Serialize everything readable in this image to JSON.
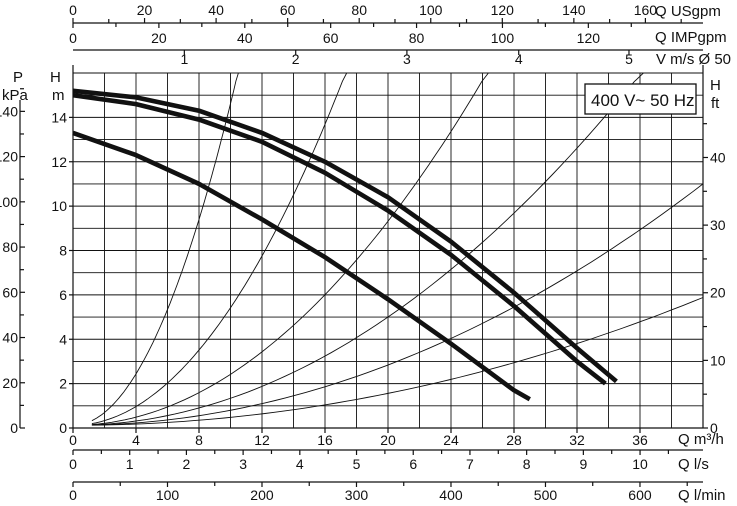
{
  "chart_data": {
    "type": "line",
    "annotation": "400 V~ 50 Hz",
    "x_m3h": {
      "label": "Q m³/h",
      "range": [
        0,
        40
      ],
      "ticks": [
        "0",
        "4",
        "8",
        "12",
        "16",
        "20",
        "24",
        "28",
        "32",
        "36"
      ]
    },
    "x_ls": {
      "label": "Q l/s",
      "range": [
        0,
        11.11
      ],
      "ticks": [
        "0",
        "1",
        "2",
        "3",
        "4",
        "5",
        "6",
        "7",
        "8",
        "9",
        "10"
      ]
    },
    "x_lmin": {
      "label": "Q l/min",
      "range": [
        0,
        666.7
      ],
      "ticks": [
        "0",
        "100",
        "200",
        "300",
        "400",
        "500",
        "600"
      ]
    },
    "x_usgpm": {
      "label": "Q USgpm",
      "range": [
        0,
        176.1
      ],
      "ticks": [
        "0",
        "20",
        "40",
        "60",
        "80",
        "100",
        "120",
        "140",
        "160"
      ]
    },
    "x_impgpm": {
      "label": "Q IMPgpm",
      "range": [
        0,
        146.7
      ],
      "ticks": [
        "0",
        "20",
        "40",
        "60",
        "80",
        "100",
        "120"
      ]
    },
    "x_velocity": {
      "label": "V m/s Ø 50",
      "ticks": [
        "1",
        "2",
        "3",
        "4",
        "5"
      ],
      "values_m3h": [
        7.07,
        14.14,
        21.2,
        28.3,
        35.3
      ]
    },
    "y_head_m": {
      "label_top": "H",
      "label_unit": "m",
      "range": [
        0,
        16
      ],
      "ticks": [
        "0",
        "2",
        "4",
        "6",
        "8",
        "10",
        "12",
        "14"
      ]
    },
    "y_head_ft": {
      "label_top": "H",
      "label_unit": "ft",
      "ticks": [
        "0",
        "10",
        "20",
        "30",
        "40"
      ]
    },
    "y_pressure_kpa": {
      "label_top": "P",
      "label_unit": "kPa",
      "ticks": [
        "0",
        "20",
        "40",
        "60",
        "80",
        "100",
        "120",
        "140"
      ]
    },
    "series": [
      {
        "x": [
          0,
          4,
          8,
          12,
          16,
          20,
          24,
          28,
          32,
          34.5
        ],
        "y": [
          15.2,
          14.9,
          14.3,
          13.3,
          12.0,
          10.4,
          8.4,
          6.1,
          3.6,
          2.1
        ]
      },
      {
        "x": [
          0,
          4,
          8,
          12,
          16,
          20,
          24,
          28,
          32,
          33.8
        ],
        "y": [
          15.0,
          14.6,
          13.9,
          12.9,
          11.5,
          9.8,
          7.8,
          5.5,
          3.0,
          2.0
        ]
      },
      {
        "x": [
          0,
          4,
          8,
          12,
          16,
          20,
          24,
          28,
          29.0
        ],
        "y": [
          13.3,
          12.3,
          11.0,
          9.4,
          7.7,
          5.8,
          3.8,
          1.7,
          1.3
        ]
      }
    ],
    "system_curves_k": [
      0.145,
      0.053,
      0.023,
      0.0122,
      0.0068,
      0.0036
    ]
  }
}
